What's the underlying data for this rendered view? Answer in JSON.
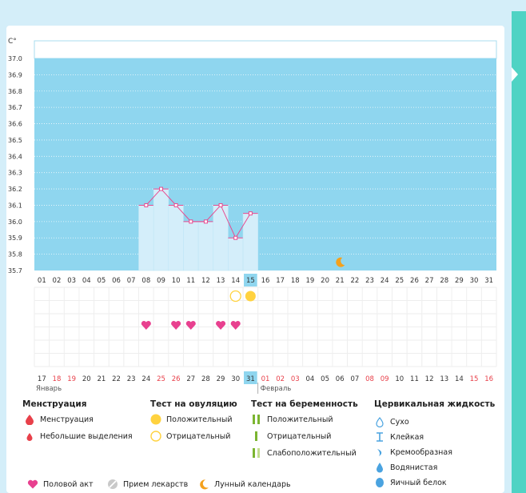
{
  "chart_data": {
    "type": "line",
    "ylabel": "C°",
    "ylim": [
      35.7,
      37.0
    ],
    "y_ticks": [
      "37.0",
      "36.9",
      "36.8",
      "36.7",
      "36.6",
      "36.5",
      "36.4",
      "36.3",
      "36.2",
      "36.1",
      "36.0",
      "35.9",
      "35.8",
      "35.7"
    ],
    "top_days": [
      "01",
      "02",
      "03",
      "04",
      "05",
      "06",
      "07",
      "08",
      "09",
      "10",
      "11",
      "12",
      "13",
      "14",
      "15",
      "16",
      "17",
      "18",
      "19",
      "20",
      "21",
      "22",
      "23",
      "24",
      "25",
      "26",
      "27",
      "28",
      "29",
      "30",
      "31"
    ],
    "bottom_days": [
      "17",
      "18",
      "19",
      "20",
      "21",
      "22",
      "23",
      "24",
      "25",
      "26",
      "27",
      "28",
      "29",
      "30",
      "31",
      "01",
      "02",
      "03",
      "04",
      "05",
      "06",
      "07",
      "08",
      "09",
      "10",
      "11",
      "12",
      "13",
      "14",
      "15",
      "16"
    ],
    "bottom_weekend": [
      1,
      2,
      8,
      9,
      15,
      16,
      17,
      22,
      23,
      29,
      30
    ],
    "current_day_index": 14,
    "months": [
      "Январь",
      "Февраль"
    ],
    "series": [
      {
        "x": [
          8,
          9,
          10,
          11,
          12,
          13,
          14,
          15
        ],
        "values": [
          36.1,
          36.2,
          36.1,
          36.0,
          36.0,
          36.1,
          35.9,
          36.05
        ]
      }
    ],
    "moon_day": 21,
    "ovulation_positive_day": 15,
    "ovulation_negative_day": 14,
    "intercourse_days": [
      8,
      10,
      11,
      13,
      14
    ]
  },
  "legend": {
    "menstruation": {
      "title": "Менструация",
      "items": [
        "Менструация",
        "Небольшие выделения"
      ]
    },
    "ovulation": {
      "title": "Тест на овуляцию",
      "items": [
        "Положительный",
        "Отрицательный"
      ]
    },
    "pregnancy": {
      "title": "Тест на беременность",
      "items": [
        "Положительный",
        "Отрицательный",
        "Слабоположительный"
      ]
    },
    "cervical": {
      "title": "Цервикальная жидкость",
      "items": [
        "Сухо",
        "Клейкая",
        "Кремообразная",
        "Водянистая",
        "Яичный белок"
      ]
    },
    "bottom": [
      "Половой акт",
      "Прием лекарств",
      "Лунный календарь"
    ]
  },
  "colors": {
    "chart_bg": "#8fd6ef",
    "bar_fill": "#d4eefa",
    "line": "#e84a8f",
    "heart": "#e8408f",
    "ovulation": "#ffd23f",
    "moon": "#f4a11d",
    "menstruation": "#e8404a",
    "pregnancy_positive": "#7bb531",
    "pregnancy_negative": "#7bb531",
    "pregnancy_weak": "#c2dd8d",
    "cervical_blue": "#4aa3e0",
    "weekend": "#e8404a",
    "today_bg": "#8fd6ef"
  }
}
